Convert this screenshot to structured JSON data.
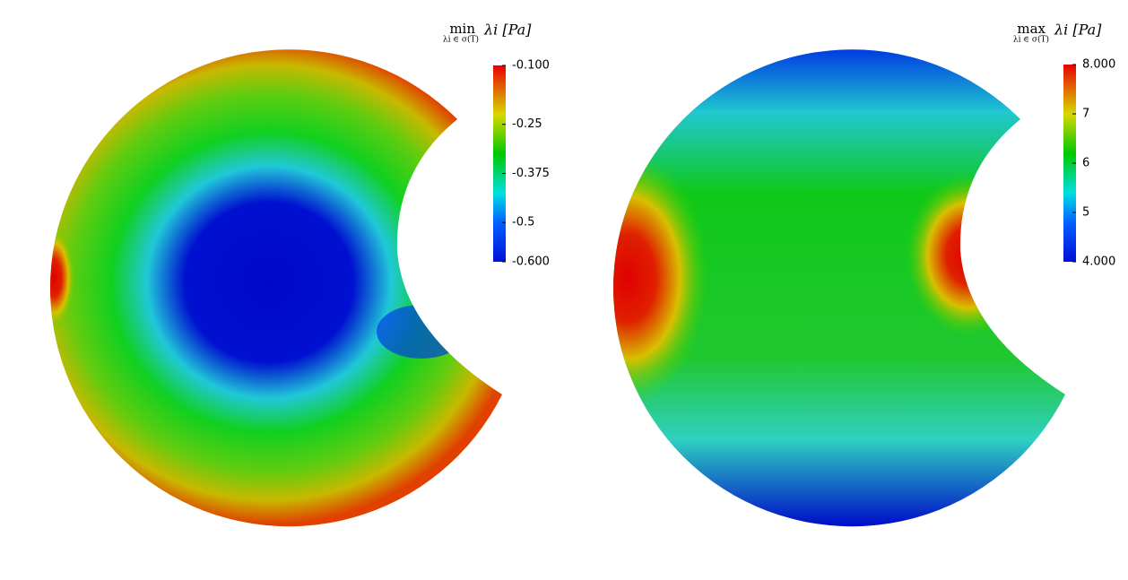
{
  "panels": [
    {
      "operator": "min",
      "subscript": "λi ∈ σ(T)",
      "expression": "λi [Pa]",
      "colorbar": {
        "range": [
          -0.6,
          -0.1
        ],
        "ticks": [
          {
            "value": -0.1,
            "label": "-0.100"
          },
          -0.25,
          -0.375,
          -0.5,
          {
            "value": -0.6,
            "label": "-0.600"
          }
        ]
      }
    },
    {
      "operator": "max",
      "subscript": "λi ∈ σ(T)",
      "expression": "λi [Pa]",
      "colorbar": {
        "range": [
          4,
          8
        ],
        "ticks": [
          {
            "value": 8,
            "label": "8.000"
          },
          7,
          6,
          5,
          {
            "value": 4,
            "label": "4.000"
          }
        ]
      }
    }
  ]
}
